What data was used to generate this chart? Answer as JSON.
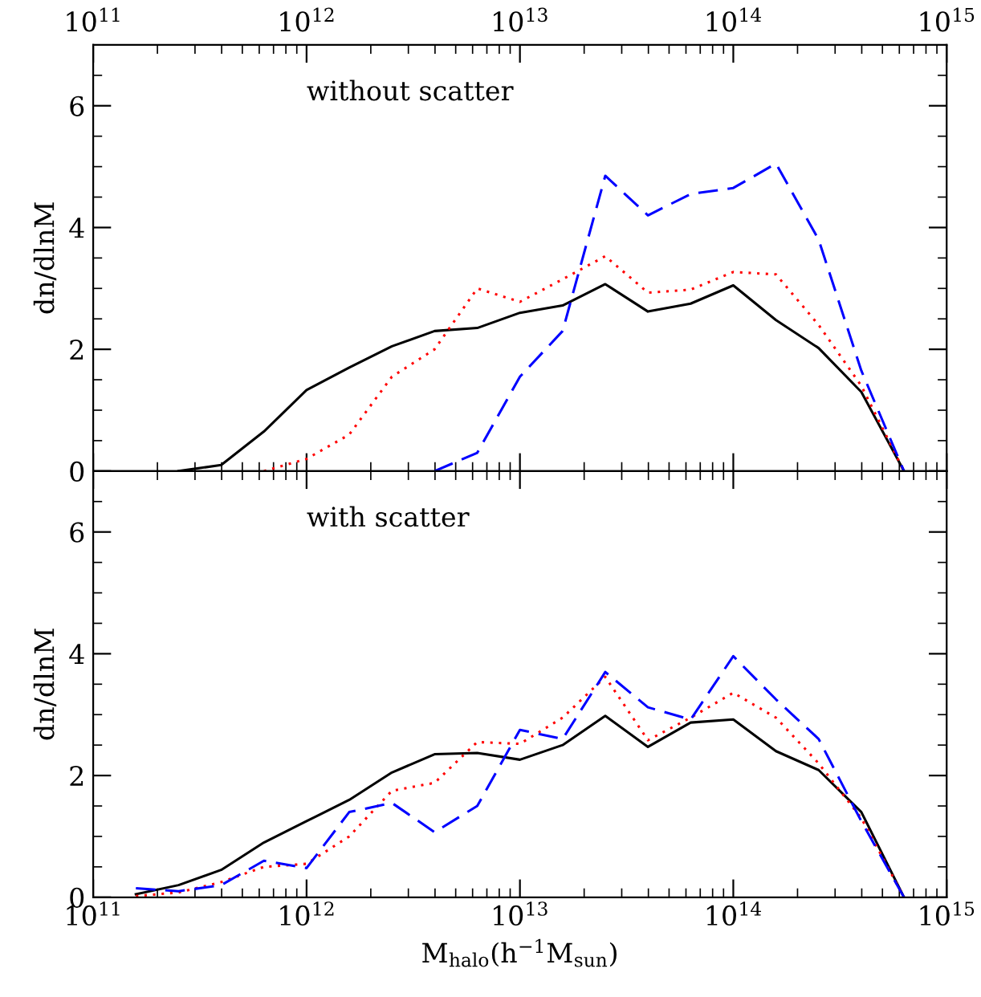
{
  "chart_data": [
    {
      "type": "line",
      "ylabel": "dn/dlnM",
      "annotations": [
        "without scatter"
      ],
      "xlim": [
        100000000000.0,
        1000000000000000.0
      ],
      "ylim": [
        0,
        7
      ],
      "log": "x",
      "grid": false,
      "marker": "none",
      "xticks": [
        {
          "value": 100000000000.0,
          "label": "10$^{11}$"
        },
        {
          "value": 1000000000000.0,
          "label": "10$^{12}$"
        },
        {
          "value": 10000000000000.0,
          "label": "10$^{13}$"
        },
        {
          "value": 100000000000000.0,
          "label": "10$^{14}$"
        },
        {
          "value": 1000000000000000.0,
          "label": "10$^{15}$"
        }
      ],
      "yticks": [
        0,
        2,
        4,
        6
      ],
      "series": [
        {
          "color": "#000000",
          "line_style": "solid",
          "x": [
            251200000000.0,
            398100000000.0,
            631000000000.0,
            1000000000000.0,
            1585000000000.0,
            2512000000000.0,
            3981000000000.0,
            6310000000000.0,
            10000000000000.0,
            15850000000000.0,
            25120000000000.0,
            39810000000000.0,
            63100000000000.0,
            100000000000000.0,
            158500000000000.0,
            251200000000000.0,
            398100000000000.0,
            631000000000000.0
          ],
          "values": [
            0,
            0.1,
            0.65,
            1.33,
            1.7,
            2.05,
            2.3,
            2.35,
            2.6,
            2.72,
            3.07,
            2.62,
            2.75,
            3.05,
            2.48,
            2.02,
            1.3,
            0
          ]
        },
        {
          "color": "#ff0000",
          "line_style": "dotted",
          "x": [
            631000000000.0,
            1000000000000.0,
            1585000000000.0,
            2512000000000.0,
            3981000000000.0,
            6310000000000.0,
            10000000000000.0,
            15850000000000.0,
            25120000000000.0,
            39810000000000.0,
            63100000000000.0,
            100000000000000.0,
            158500000000000.0,
            251200000000000.0,
            398100000000000.0,
            631000000000000.0
          ],
          "values": [
            0,
            0.2,
            0.6,
            1.55,
            2.0,
            3.0,
            2.78,
            3.15,
            3.53,
            2.93,
            2.98,
            3.27,
            3.23,
            2.4,
            1.4,
            0
          ]
        },
        {
          "color": "#0000ff",
          "line_style": "dashed",
          "x": [
            3981000000000.0,
            6310000000000.0,
            10000000000000.0,
            15850000000000.0,
            25120000000000.0,
            39810000000000.0,
            63100000000000.0,
            100000000000000.0,
            158500000000000.0,
            251200000000000.0,
            398100000000000.0,
            631000000000000.0
          ],
          "values": [
            0,
            0.3,
            1.55,
            2.3,
            4.85,
            4.2,
            4.55,
            4.65,
            5.05,
            3.8,
            1.65,
            0
          ]
        }
      ]
    },
    {
      "type": "line",
      "ylabel": "dn/dlnM",
      "xlabel": "M$_{halo}$(h$^{−1}$M$_{sun}$)",
      "annotations": [
        "with scatter"
      ],
      "xlim": [
        100000000000.0,
        1000000000000000.0
      ],
      "ylim": [
        0,
        7
      ],
      "log": "x",
      "grid": false,
      "marker": "none",
      "xticks": [
        {
          "value": 100000000000.0,
          "label": "10$^{11}$"
        },
        {
          "value": 1000000000000.0,
          "label": "10$^{12}$"
        },
        {
          "value": 10000000000000.0,
          "label": "10$^{13}$"
        },
        {
          "value": 100000000000000.0,
          "label": "10$^{14}$"
        },
        {
          "value": 1000000000000000.0,
          "label": "10$^{15}$"
        }
      ],
      "yticks": [
        0,
        2,
        4,
        6
      ],
      "series": [
        {
          "color": "#000000",
          "line_style": "solid",
          "x": [
            158500000000.0,
            251200000000.0,
            398100000000.0,
            631000000000.0,
            1000000000000.0,
            1585000000000.0,
            2512000000000.0,
            3981000000000.0,
            6310000000000.0,
            10000000000000.0,
            15850000000000.0,
            25120000000000.0,
            39810000000000.0,
            63100000000000.0,
            100000000000000.0,
            158500000000000.0,
            251200000000000.0,
            398100000000000.0,
            631000000000000.0
          ],
          "values": [
            0.05,
            0.2,
            0.45,
            0.9,
            1.25,
            1.6,
            2.05,
            2.35,
            2.37,
            2.26,
            2.5,
            2.98,
            2.47,
            2.87,
            2.92,
            2.4,
            2.09,
            1.4,
            0
          ]
        },
        {
          "color": "#ff0000",
          "line_style": "dotted",
          "x": [
            158500000000.0,
            251200000000.0,
            398100000000.0,
            631000000000.0,
            1000000000000.0,
            1585000000000.0,
            2512000000000.0,
            3981000000000.0,
            6310000000000.0,
            10000000000000.0,
            15850000000000.0,
            25120000000000.0,
            39810000000000.0,
            63100000000000.0,
            100000000000000.0,
            158500000000000.0,
            251200000000000.0,
            398100000000000.0,
            631000000000000.0
          ],
          "values": [
            0.02,
            0.08,
            0.25,
            0.5,
            0.55,
            1.0,
            1.75,
            1.88,
            2.55,
            2.52,
            2.95,
            3.62,
            2.58,
            2.95,
            3.36,
            2.95,
            2.2,
            1.3,
            0
          ]
        },
        {
          "color": "#0000ff",
          "line_style": "dashed",
          "x": [
            158500000000.0,
            251200000000.0,
            398100000000.0,
            631000000000.0,
            1000000000000.0,
            1585000000000.0,
            2512000000000.0,
            3981000000000.0,
            6310000000000.0,
            10000000000000.0,
            15850000000000.0,
            25120000000000.0,
            39810000000000.0,
            63100000000000.0,
            100000000000000.0,
            158500000000000.0,
            251200000000000.0,
            398100000000000.0,
            631000000000000.0
          ],
          "values": [
            0.15,
            0.1,
            0.2,
            0.6,
            0.48,
            1.4,
            1.55,
            1.07,
            1.5,
            2.75,
            2.6,
            3.7,
            3.12,
            2.92,
            3.96,
            3.25,
            2.6,
            1.25,
            0
          ]
        }
      ]
    }
  ]
}
